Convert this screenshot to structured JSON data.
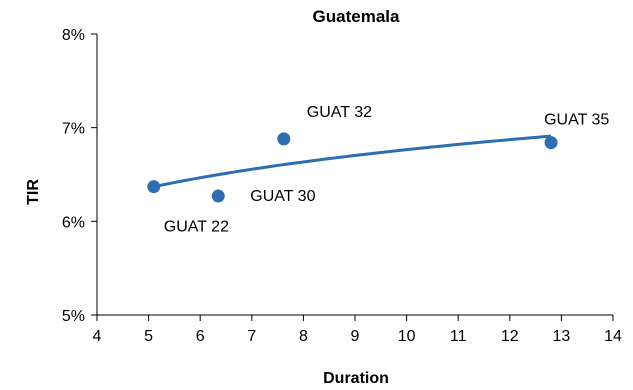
{
  "chart_data": {
    "type": "scatter",
    "title": "Guatemala",
    "xlabel": "Duration",
    "ylabel": "TIR",
    "xlim": [
      4,
      14
    ],
    "ylim": [
      0.05,
      0.08
    ],
    "x_ticks": [
      "4",
      "5",
      "6",
      "7",
      "8",
      "9",
      "10",
      "11",
      "12",
      "13",
      "14"
    ],
    "y_ticks": [
      "5%",
      "6%",
      "7%",
      "8%"
    ],
    "grid": false,
    "legend": "none",
    "series": [
      {
        "points": [
          {
            "label": "GUAT 22",
            "x": 5.1,
            "y": 0.0637
          },
          {
            "label": "GUAT 30",
            "x": 6.35,
            "y": 0.0627
          },
          {
            "label": "GUAT 32",
            "x": 7.62,
            "y": 0.0688
          },
          {
            "label": "GUAT 35",
            "x": 12.8,
            "y": 0.0684
          }
        ]
      }
    ],
    "trendline": {
      "type": "log",
      "x_start": 5.1,
      "x_end": 12.8,
      "y_start": 0.0637,
      "y_end": 0.0691
    },
    "colors": {
      "marker": "#2e6eb0",
      "trendline": "#2e6eb0",
      "axis": "#000000"
    }
  }
}
